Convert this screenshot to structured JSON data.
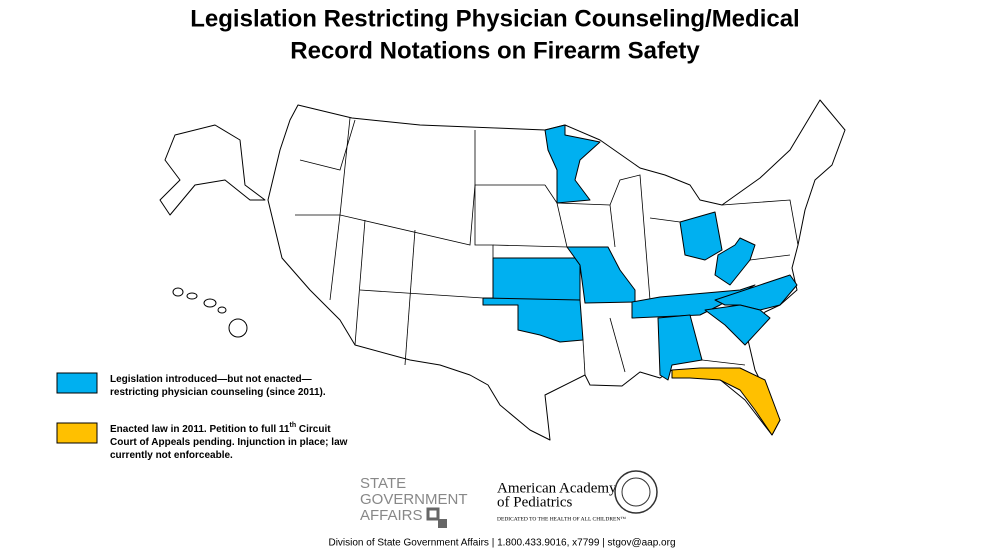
{
  "header": {
    "title_lines": [
      "Legislation Restricting Physician Counseling/Medical",
      "Record Notations on Firearm Safety"
    ]
  },
  "legend": {
    "items": [
      {
        "color": "#00b0f0",
        "lines": [
          [
            {
              "text": "Legislation introduced—but not enacted—"
            }
          ],
          [
            {
              "text": "restricting physician counseling (since 2011)."
            }
          ]
        ]
      },
      {
        "color": "#ffc000",
        "lines": [
          [
            {
              "text": "Enacted law in 2011. Petition to full 11"
            },
            {
              "text": "th",
              "superscript": true
            },
            {
              "text": " Circuit"
            }
          ],
          [
            {
              "text": "Court of Appeals pending. Injunction in place; law"
            }
          ],
          [
            {
              "text": "currently not enforceable."
            }
          ]
        ]
      }
    ]
  },
  "logos": {
    "sga_lines": [
      "STATE",
      "GOVERNMENT",
      "AFFAIRS"
    ],
    "aap_lines": [
      "American Academy",
      "of Pediatrics"
    ],
    "aap_tagline": "DEDICATED TO THE HEALTH OF ALL CHILDREN™"
  },
  "footer": "Division of State Government Affairs | 1.800.433.9016, x7799 | stgov@aap.org"
}
